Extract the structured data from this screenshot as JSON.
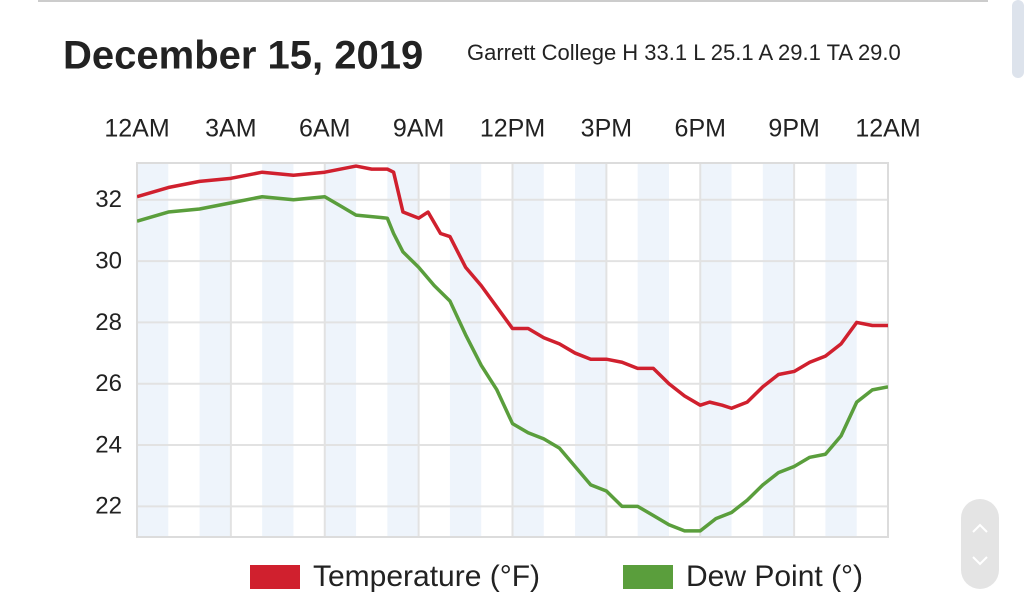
{
  "chart_data": {
    "type": "line",
    "title": "December 15, 2019",
    "subtitle": "Garrett College H 33.1 L 25.1 A 29.1 TA 29.0",
    "xlim": [
      0,
      24
    ],
    "xticks": [
      {
        "value": 0,
        "label": "12AM"
      },
      {
        "value": 3,
        "label": "3AM"
      },
      {
        "value": 6,
        "label": "6AM"
      },
      {
        "value": 9,
        "label": "9AM"
      },
      {
        "value": 12,
        "label": "12PM"
      },
      {
        "value": 15,
        "label": "3PM"
      },
      {
        "value": 18,
        "label": "6PM"
      },
      {
        "value": 21,
        "label": "9PM"
      },
      {
        "value": 24,
        "label": "12AM"
      }
    ],
    "ylim": [
      21,
      33.2
    ],
    "yticks": [
      22,
      24,
      26,
      28,
      30,
      32
    ],
    "grid": true,
    "legend": "bottom",
    "series": [
      {
        "name": "Temperature (°F)",
        "color": "#d0202e",
        "x": [
          0,
          1,
          2,
          3,
          4,
          5,
          6,
          7,
          7.5,
          8,
          8.2,
          8.5,
          9,
          9.3,
          9.7,
          10,
          10.5,
          11,
          11.5,
          12,
          12.5,
          13,
          13.5,
          14,
          14.5,
          15,
          15.5,
          16,
          16.5,
          17,
          17.5,
          18,
          18.3,
          18.7,
          19,
          19.5,
          20,
          20.5,
          21,
          21.5,
          22,
          22.5,
          23,
          23.5,
          24
        ],
        "values": [
          32.1,
          32.4,
          32.6,
          32.7,
          32.9,
          32.8,
          32.9,
          33.1,
          33.0,
          33.0,
          32.9,
          31.6,
          31.4,
          31.6,
          30.9,
          30.8,
          29.8,
          29.2,
          28.5,
          27.8,
          27.8,
          27.5,
          27.3,
          27.0,
          26.8,
          26.8,
          26.7,
          26.5,
          26.5,
          26.0,
          25.6,
          25.3,
          25.4,
          25.3,
          25.2,
          25.4,
          25.9,
          26.3,
          26.4,
          26.7,
          26.9,
          27.3,
          28.0,
          27.9,
          27.9
        ]
      },
      {
        "name": "Dew Point (°)",
        "color": "#5a9e3c",
        "x": [
          0,
          1,
          2,
          3,
          4,
          5,
          6,
          6.5,
          7,
          8,
          8.2,
          8.5,
          9,
          9.5,
          10,
          10.5,
          11,
          11.5,
          12,
          12.5,
          13,
          13.5,
          14,
          14.5,
          15,
          15.5,
          16,
          16.5,
          17,
          17.5,
          18,
          18.5,
          19,
          19.5,
          20,
          20.5,
          21,
          21.5,
          22,
          22.5,
          23,
          23.5,
          24
        ],
        "values": [
          31.3,
          31.6,
          31.7,
          31.9,
          32.1,
          32.0,
          32.1,
          31.8,
          31.5,
          31.4,
          30.9,
          30.3,
          29.8,
          29.2,
          28.7,
          27.6,
          26.6,
          25.8,
          24.7,
          24.4,
          24.2,
          23.9,
          23.3,
          22.7,
          22.5,
          22.0,
          22.0,
          21.7,
          21.4,
          21.2,
          21.2,
          21.6,
          21.8,
          22.2,
          22.7,
          23.1,
          23.3,
          23.6,
          23.7,
          24.3,
          25.4,
          25.8,
          25.9
        ]
      }
    ]
  }
}
